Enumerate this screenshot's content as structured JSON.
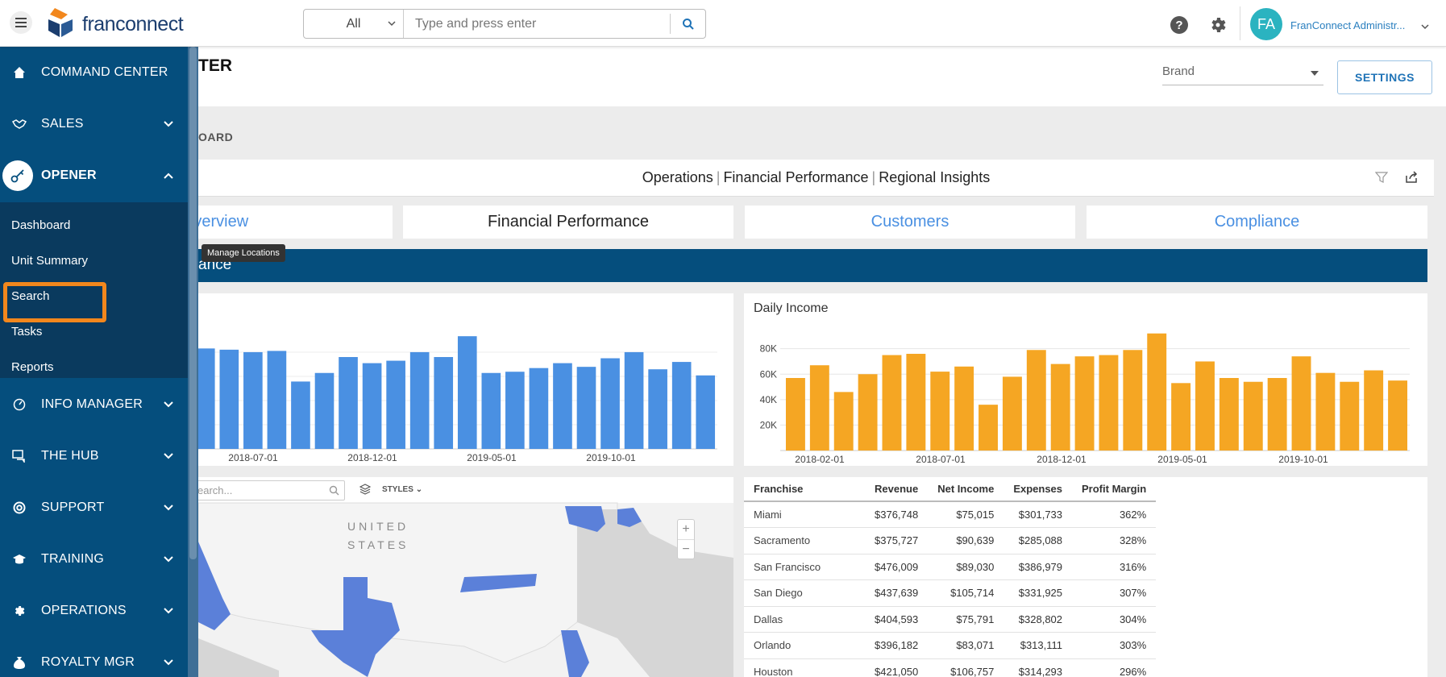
{
  "header": {
    "logo_text": "franconnect",
    "search_scope": "All",
    "search_placeholder": "Type and press enter",
    "help_label": "?",
    "avatar_initials": "FA",
    "user_name": "FranConnect Administr..."
  },
  "sidebar": {
    "items": [
      {
        "label": "COMMAND CENTER",
        "icon": "home-icon"
      },
      {
        "label": "SALES",
        "icon": "handshake-icon"
      },
      {
        "label": "OPENER",
        "icon": "key-icon"
      },
      {
        "label": "INFO MANAGER",
        "icon": "gauge-icon"
      },
      {
        "label": "THE HUB",
        "icon": "chat-icon"
      },
      {
        "label": "SUPPORT",
        "icon": "lifebuoy-icon"
      },
      {
        "label": "TRAINING",
        "icon": "graduation-icon"
      },
      {
        "label": "OPERATIONS",
        "icon": "gear-icon"
      },
      {
        "label": "ROYALTY MGR",
        "icon": "moneybag-icon"
      }
    ],
    "opener_submenu": [
      "Dashboard",
      "Unit Summary",
      "Search",
      "Tasks",
      "Reports"
    ]
  },
  "tooltip": "Manage Locations",
  "page": {
    "title_fragment": "TER",
    "board_fragment": "OARD",
    "brand_placeholder": "Brand",
    "settings_label": "SETTINGS",
    "dashboard_nav": [
      "Operations",
      "Financial Performance",
      "Regional Insights"
    ],
    "tabs": [
      "Overview",
      "Financial Performance",
      "Customers",
      "Compliance"
    ],
    "active_tab": "Financial Performance",
    "section_fragment": "ance"
  },
  "colors": {
    "sidebar": "#054e7d",
    "accent_blue": "#4a90e2",
    "accent_orange": "#f5a623",
    "highlight": "#f2871d"
  },
  "chart_data": [
    {
      "type": "bar",
      "title": "",
      "x_ticks": [
        "2018-07-01",
        "2018-12-01",
        "2019-05-01",
        "2019-10-01"
      ],
      "values": [
        82,
        81,
        79,
        80,
        55,
        62,
        75,
        70,
        72,
        79,
        75,
        92,
        62,
        63,
        66,
        70,
        67,
        74,
        79,
        65,
        71,
        60
      ],
      "ylim": [
        0,
        100
      ]
    },
    {
      "type": "bar",
      "title": "Daily Income",
      "x_ticks": [
        "2018-02-01",
        "2018-07-01",
        "2018-12-01",
        "2019-05-01",
        "2019-10-01"
      ],
      "y_ticks": [
        "20K",
        "40K",
        "60K",
        "80K"
      ],
      "values": [
        57000,
        67000,
        46000,
        60000,
        75000,
        76000,
        62000,
        66000,
        36000,
        58000,
        79000,
        68000,
        74000,
        75000,
        79000,
        92000,
        53000,
        70000,
        57000,
        54000,
        57000,
        74000,
        61000,
        54000,
        63000,
        55000
      ],
      "ylim": [
        0,
        95000
      ]
    }
  ],
  "map": {
    "search_placeholder": "earch...",
    "styles_label": "STYLES",
    "zoom_in": "+",
    "zoom_out": "−",
    "country_label_1": "UNITED",
    "country_label_2": "STATES"
  },
  "table": {
    "columns": [
      "Franchise",
      "Revenue",
      "Net Income",
      "Expenses",
      "Profit Margin"
    ],
    "rows": [
      [
        "Miami",
        "$376,748",
        "$75,015",
        "$301,733",
        "362%"
      ],
      [
        "Sacramento",
        "$375,727",
        "$90,639",
        "$285,088",
        "328%"
      ],
      [
        "San Francisco",
        "$476,009",
        "$89,030",
        "$386,979",
        "316%"
      ],
      [
        "San Diego",
        "$437,639",
        "$105,714",
        "$331,925",
        "307%"
      ],
      [
        "Dallas",
        "$404,593",
        "$75,791",
        "$328,802",
        "304%"
      ],
      [
        "Orlando",
        "$396,182",
        "$83,071",
        "$313,111",
        "303%"
      ],
      [
        "Houston",
        "$421,050",
        "$106,757",
        "$314,293",
        "296%"
      ]
    ]
  }
}
